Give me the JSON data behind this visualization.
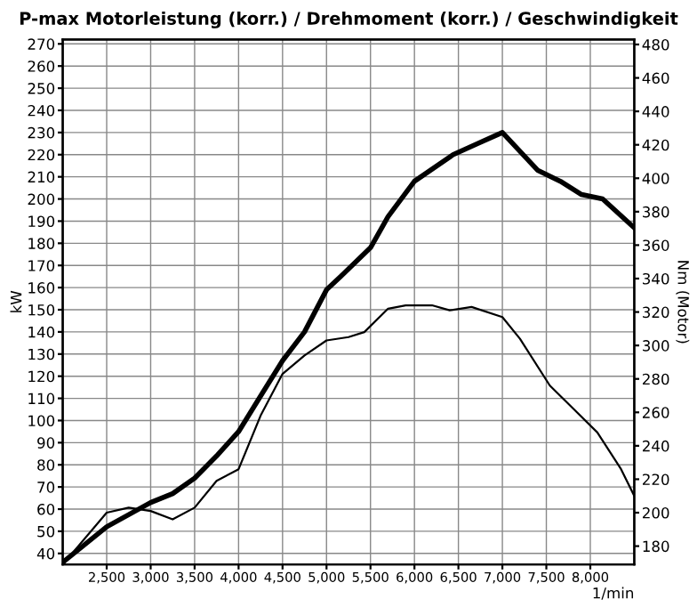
{
  "chart_data": {
    "type": "line",
    "title": "P-max Motorleistung (korr.) / Drehmoment (korr.) / Geschwindigkeit",
    "xlabel": "1/min",
    "ylabel": "kW",
    "y2label": "Nm (Motor)",
    "xlim": [
      2000,
      8500
    ],
    "xticks": [
      {
        "value": 2500,
        "label": "2,500"
      },
      {
        "value": 3000,
        "label": "3,000"
      },
      {
        "value": 3500,
        "label": "3,500"
      },
      {
        "value": 4000,
        "label": "4,000"
      },
      {
        "value": 4500,
        "label": "4,500"
      },
      {
        "value": 5000,
        "label": "5,000"
      },
      {
        "value": 5500,
        "label": "5,500"
      },
      {
        "value": 6000,
        "label": "6,000"
      },
      {
        "value": 6500,
        "label": "6,500"
      },
      {
        "value": 7000,
        "label": "7,000"
      },
      {
        "value": 7500,
        "label": "7,500"
      },
      {
        "value": 8000,
        "label": "8,000"
      }
    ],
    "ylim": [
      35,
      272
    ],
    "yticks": [
      40,
      50,
      60,
      70,
      80,
      90,
      100,
      110,
      120,
      130,
      140,
      150,
      160,
      170,
      180,
      190,
      200,
      210,
      220,
      230,
      240,
      250,
      260,
      270
    ],
    "y2lim": [
      169,
      483
    ],
    "y2ticks": [
      180,
      200,
      220,
      240,
      260,
      280,
      300,
      320,
      340,
      360,
      380,
      400,
      420,
      440,
      460,
      480
    ],
    "grid": true,
    "marker": "none",
    "line_style": "solid",
    "series": [
      {
        "color": "#000000",
        "x": [
          2000,
          2500,
          3000,
          3250,
          3500,
          3750,
          4000,
          4250,
          4500,
          4750,
          5000,
          5160,
          5500,
          5700,
          6000,
          6440,
          6720,
          7000,
          7400,
          7660,
          7900,
          8140,
          8500
        ],
        "values": [
          36,
          52,
          63,
          67,
          74,
          84,
          95,
          111,
          127,
          140,
          159,
          165,
          178,
          192,
          208,
          220,
          225,
          230,
          213,
          208,
          202,
          200,
          187
        ]
      },
      {
        "color": "#000000",
        "axis": "y2",
        "x": [
          2000,
          2500,
          2750,
          3000,
          3250,
          3500,
          3750,
          4000,
          4250,
          4500,
          4750,
          5000,
          5250,
          5430,
          5700,
          5900,
          6200,
          6400,
          6650,
          7000,
          7200,
          7540,
          7810,
          8080,
          8350,
          8500
        ],
        "values": [
          169,
          200,
          203,
          201,
          196,
          203,
          219,
          226,
          258,
          283,
          294,
          303,
          305,
          308,
          322,
          324,
          324,
          321,
          323,
          317,
          304,
          276,
          262,
          248,
          226,
          210
        ]
      }
    ]
  }
}
